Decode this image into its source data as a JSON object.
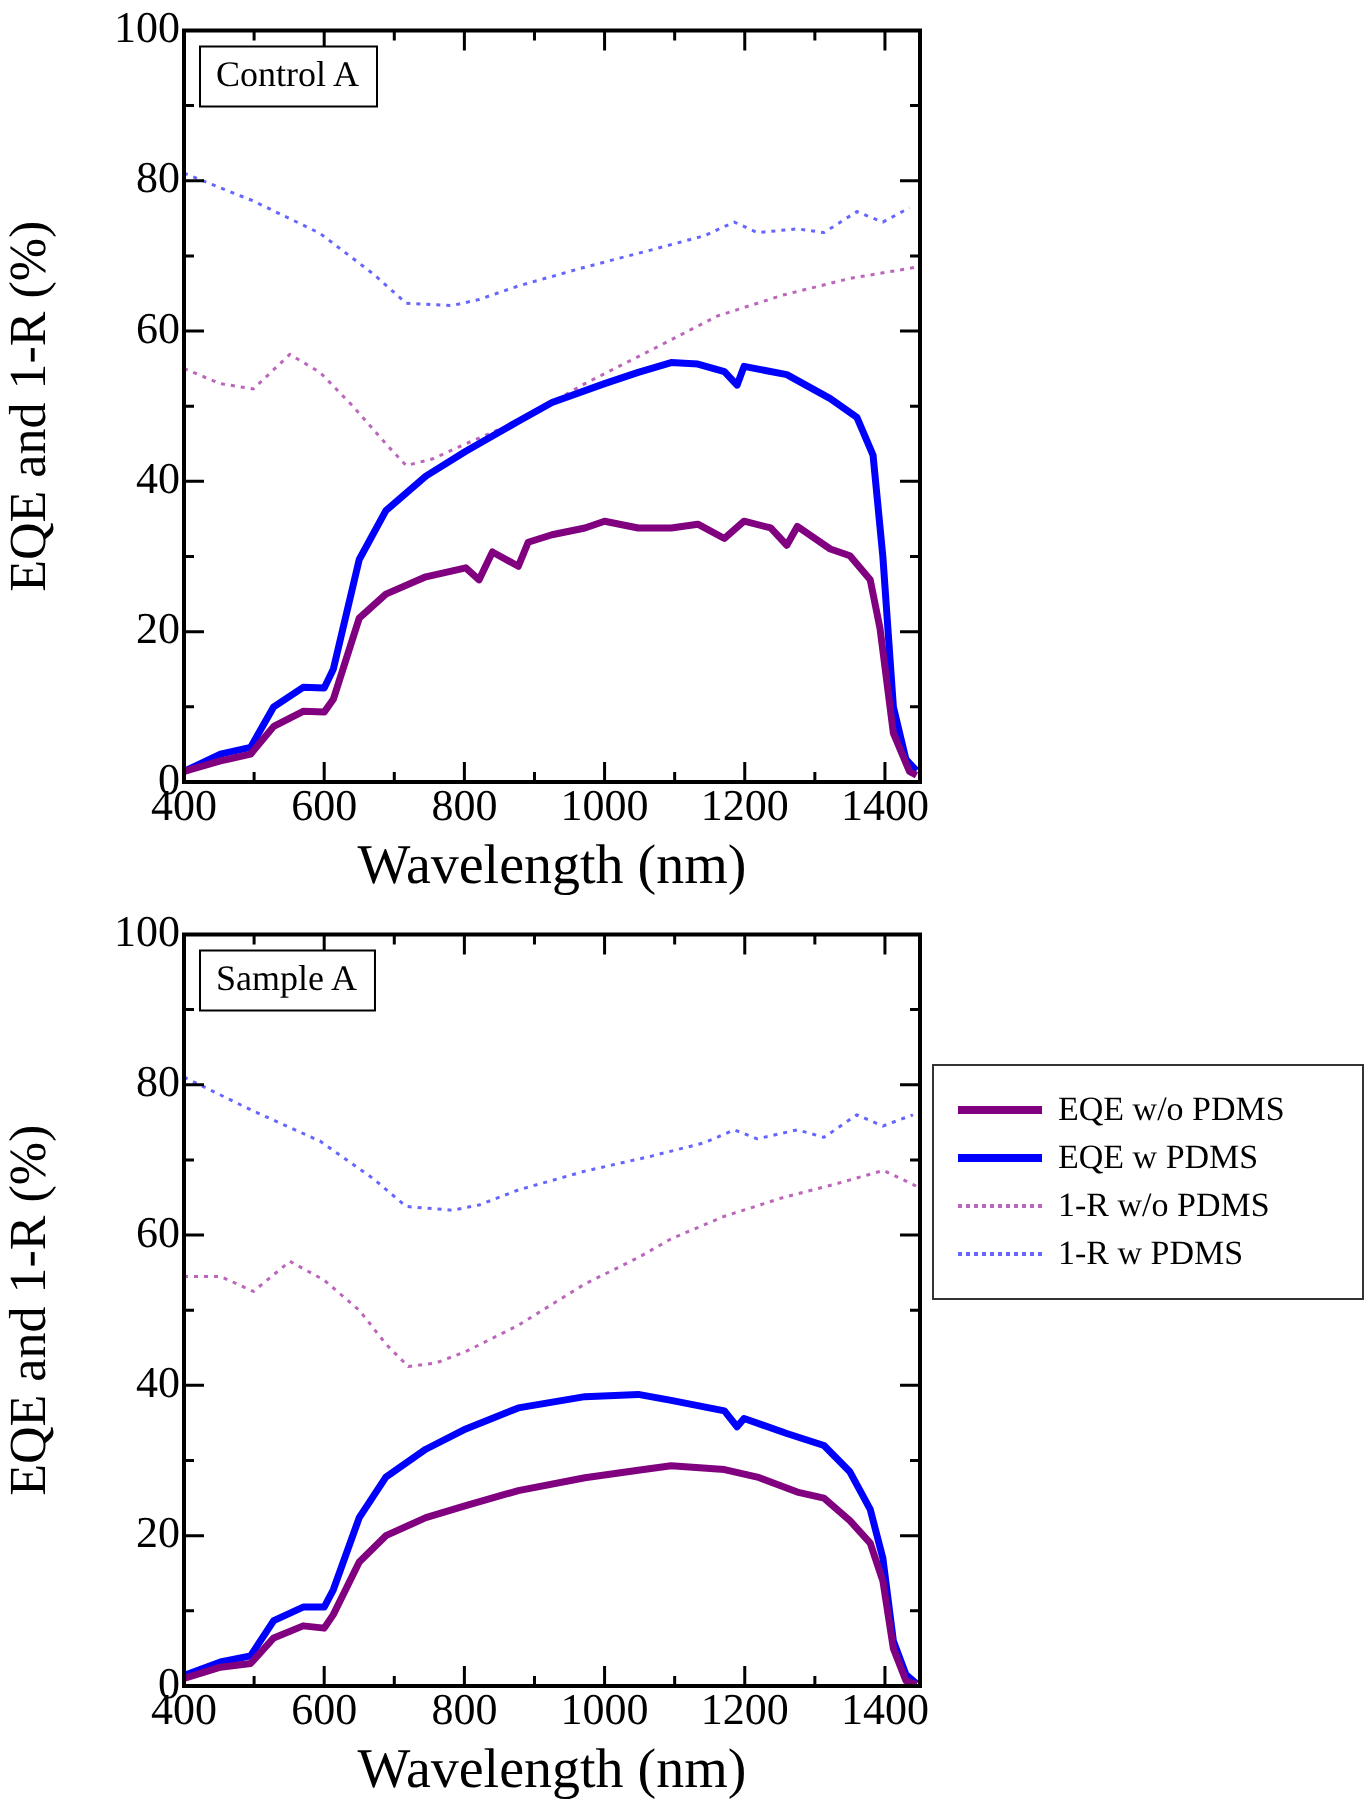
{
  "chart_data": [
    {
      "type": "line",
      "xlabel": "Wavelength (nm)",
      "ylabel": "EQE and 1-R (%)",
      "annotations": [
        "Control A"
      ],
      "xlim": [
        400,
        1450
      ],
      "ylim": [
        0,
        100
      ],
      "xticks": [
        400,
        {
          "value": 500,
          "label": null
        },
        600,
        {
          "value": 700,
          "label": null
        },
        800,
        {
          "value": 900,
          "label": null
        },
        1000,
        {
          "value": 1100,
          "label": null
        },
        1200,
        {
          "value": 1300,
          "label": null
        },
        1400
      ],
      "yticks": [
        0,
        {
          "value": 10,
          "label": null
        },
        20,
        {
          "value": 30,
          "label": null
        },
        40,
        {
          "value": 50,
          "label": null
        },
        60,
        {
          "value": 70,
          "label": null
        },
        80,
        {
          "value": 90,
          "label": null
        },
        100
      ],
      "series": [
        {
          "color": "#800080",
          "line_style": "solid",
          "x": [
            400,
            452,
            495,
            528,
            570,
            600,
            613,
            650,
            688,
            745,
            802,
            821,
            840,
            877,
            891,
            925,
            972,
            1000,
            1048,
            1095,
            1133,
            1171,
            1199,
            1237,
            1260,
            1275,
            1322,
            1350,
            1379,
            1393,
            1412,
            1435,
            1445
          ],
          "values": [
            1.4,
            2.8,
            3.7,
            7.4,
            9.4,
            9.3,
            11,
            21.8,
            25,
            27.3,
            28.5,
            26.9,
            30.6,
            28.7,
            31.9,
            32.9,
            33.8,
            34.7,
            33.8,
            33.8,
            34.3,
            32.4,
            34.7,
            33.8,
            31.5,
            34,
            31,
            30.1,
            26.9,
            20.4,
            6.5,
            1.4,
            0.9
          ]
        },
        {
          "color": "#0000ff",
          "line_style": "solid",
          "x": [
            400,
            452,
            495,
            528,
            570,
            600,
            613,
            650,
            688,
            745,
            802,
            877,
            925,
            1000,
            1048,
            1095,
            1133,
            1171,
            1189,
            1199,
            1260,
            1322,
            1360,
            1383,
            1397,
            1412,
            1430,
            1445
          ],
          "values": [
            1.4,
            3.7,
            4.6,
            10,
            12.6,
            12.5,
            15,
            29.6,
            36.1,
            40.7,
            44,
            48,
            50.5,
            53,
            54.5,
            55.8,
            55.6,
            54.6,
            52.8,
            55.3,
            54.2,
            51,
            48.5,
            43.5,
            30,
            10,
            3,
            1.5
          ]
        },
        {
          "color": "#bb66bb",
          "line_style": "dotted",
          "x": [
            400,
            452,
            499,
            551,
            594,
            641,
            688,
            717,
            755,
            802,
            877,
            972,
            1067,
            1161,
            1255,
            1350,
            1445
          ],
          "values": [
            55,
            53,
            52.3,
            56.9,
            54.5,
            50,
            45,
            42.1,
            43,
            45,
            48,
            53,
            57.5,
            62,
            64.8,
            67,
            68.5
          ]
        },
        {
          "color": "#6666ff",
          "line_style": "dotted",
          "x": [
            400,
            499,
            594,
            670,
            717,
            783,
            821,
            877,
            972,
            1067,
            1143,
            1185,
            1218,
            1275,
            1313,
            1360,
            1397,
            1435
          ],
          "values": [
            81,
            77.3,
            73,
            67.6,
            63.7,
            63.4,
            64.2,
            66,
            68.5,
            70.8,
            72.7,
            74.5,
            73.1,
            73.6,
            73.1,
            75.9,
            74.5,
            76.4
          ]
        }
      ]
    },
    {
      "type": "line",
      "xlabel": "Wavelength (nm)",
      "ylabel": "EQE and 1-R (%)",
      "annotations": [
        "Sample A"
      ],
      "legend": "right",
      "xlim": [
        400,
        1450
      ],
      "ylim": [
        0,
        100
      ],
      "xticks": [
        400,
        {
          "value": 500,
          "label": null
        },
        600,
        {
          "value": 700,
          "label": null
        },
        800,
        {
          "value": 900,
          "label": null
        },
        1000,
        {
          "value": 1100,
          "label": null
        },
        1200,
        {
          "value": 1300,
          "label": null
        },
        1400
      ],
      "yticks": [
        0,
        {
          "value": 10,
          "label": null
        },
        20,
        {
          "value": 30,
          "label": null
        },
        40,
        {
          "value": 50,
          "label": null
        },
        60,
        {
          "value": 70,
          "label": null
        },
        80,
        {
          "value": 90,
          "label": null
        },
        100
      ],
      "series": [
        {
          "name": "EQE w/o PDMS",
          "color": "#800080",
          "line_style": "solid",
          "x": [
            400,
            452,
            495,
            528,
            570,
            600,
            613,
            650,
            688,
            745,
            802,
            877,
            972,
            1048,
            1095,
            1171,
            1218,
            1275,
            1313,
            1350,
            1379,
            1397,
            1412,
            1430,
            1445
          ],
          "values": [
            1,
            2.5,
            3,
            6.4,
            8,
            7.7,
            9.5,
            16.5,
            20,
            22.4,
            24,
            26,
            27.7,
            28.7,
            29.3,
            28.8,
            27.8,
            25.8,
            25,
            22,
            19,
            14,
            5,
            0.7,
            0.2
          ]
        },
        {
          "name": "EQE w PDMS",
          "color": "#0000ff",
          "line_style": "solid",
          "x": [
            400,
            452,
            495,
            528,
            570,
            600,
            613,
            650,
            688,
            745,
            802,
            877,
            972,
            1048,
            1095,
            1171,
            1189,
            1199,
            1260,
            1313,
            1350,
            1379,
            1397,
            1412,
            1430,
            1445
          ],
          "values": [
            1.4,
            3.2,
            4,
            8.7,
            10.5,
            10.5,
            12.8,
            22.4,
            27.8,
            31.5,
            34.2,
            37,
            38.5,
            38.8,
            38,
            36.6,
            34.5,
            35.6,
            33.6,
            32,
            28.5,
            23.5,
            17,
            6,
            1.5,
            0.3
          ]
        },
        {
          "name": "1-R w/o PDMS",
          "color": "#bb66bb",
          "line_style": "dotted",
          "x": [
            400,
            452,
            499,
            551,
            600,
            650,
            688,
            720,
            760,
            802,
            877,
            972,
            1048,
            1095,
            1171,
            1255,
            1330,
            1398,
            1445
          ],
          "values": [
            54.5,
            54.5,
            52.5,
            56.5,
            54,
            50,
            45.5,
            42.5,
            43,
            44.5,
            48,
            53.5,
            57,
            59.5,
            62.5,
            65,
            66.8,
            68.6,
            66.5
          ]
        },
        {
          "name": "1-R w PDMS",
          "color": "#6666ff",
          "line_style": "dotted",
          "x": [
            400,
            499,
            594,
            670,
            717,
            783,
            821,
            877,
            972,
            1067,
            1143,
            1185,
            1218,
            1275,
            1313,
            1360,
            1397,
            1440
          ],
          "values": [
            81,
            76.5,
            72.5,
            67.5,
            63.8,
            63.3,
            64,
            66,
            68.5,
            70.5,
            72.3,
            74,
            72.8,
            74,
            73,
            76,
            74.5,
            76
          ]
        }
      ]
    }
  ]
}
